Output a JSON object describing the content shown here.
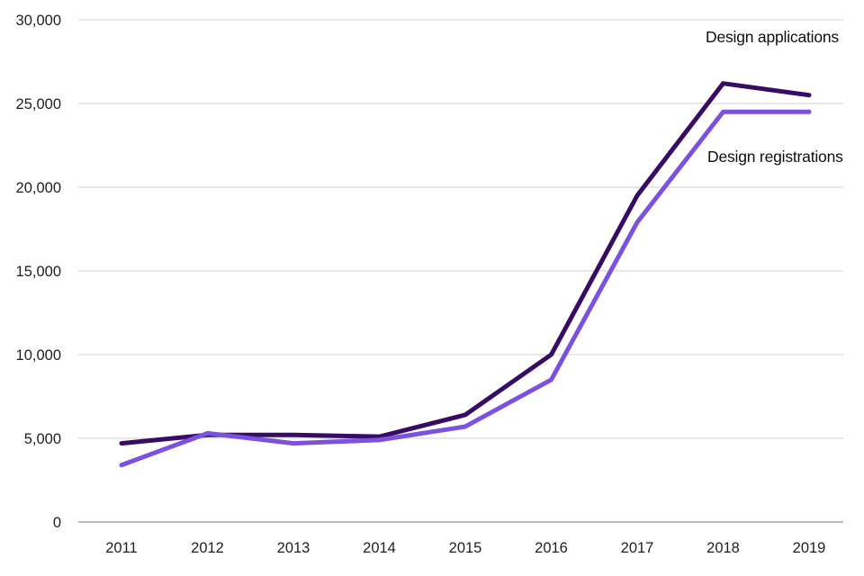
{
  "chart_data": {
    "type": "line",
    "title": "",
    "xlabel": "",
    "ylabel": "",
    "x": [
      "2011",
      "2012",
      "2013",
      "2014",
      "2015",
      "2016",
      "2017",
      "2018",
      "2019"
    ],
    "series": [
      {
        "name": "Design applications",
        "color": "#390c63",
        "values": [
          4700,
          5200,
          5200,
          5100,
          6400,
          10000,
          19500,
          26200,
          25500
        ]
      },
      {
        "name": "Design registrations",
        "color": "#7b52dd",
        "values": [
          3400,
          5300,
          4700,
          4900,
          5700,
          8500,
          17900,
          24500,
          24500
        ]
      }
    ],
    "ylim": [
      0,
      30000
    ],
    "ytick_interval": 5000,
    "ytick_labels": [
      "0",
      "5,000",
      "10,000",
      "15,000",
      "20,000",
      "25,000",
      "30,000"
    ],
    "grid": "horizontal",
    "legend_position": "inline annotations at right of lines",
    "gridline_color": "#d9d9d9",
    "axis_line_color": "#b3b3b3",
    "tick_text_color": "#1f1f1f",
    "line_width": 5
  }
}
